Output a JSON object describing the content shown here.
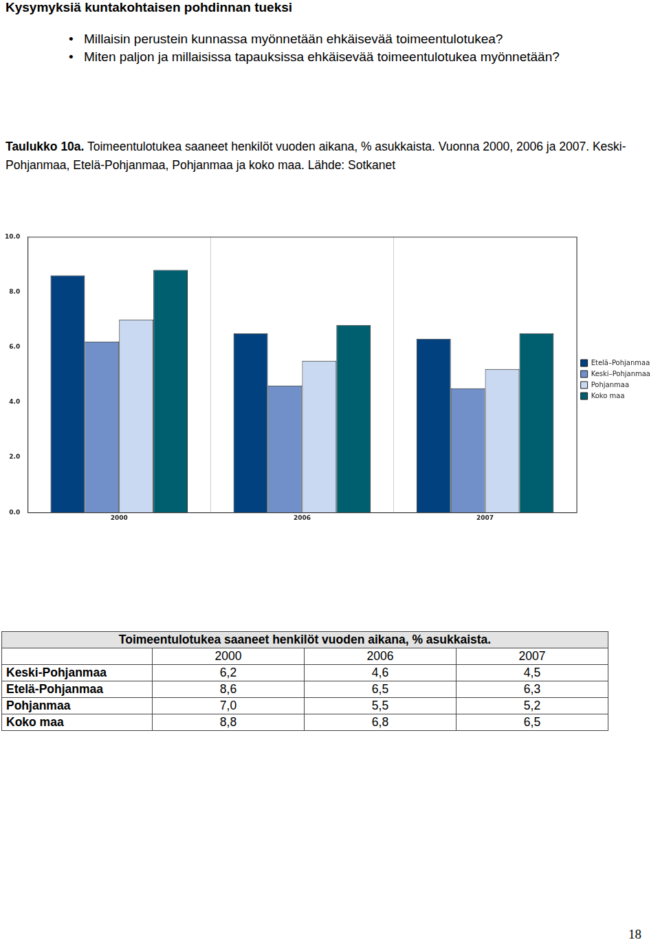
{
  "heading": "Kysymyksiä kuntakohtaisen pohdinnan tueksi",
  "bullets": [
    "Millaisin perustein kunnassa myönnetään ehkäisevää toimeentulotukea?",
    "Miten paljon ja millaisissa tapauksissa ehkäisevää toimeentulotukea myönnetään?"
  ],
  "caption": {
    "label": "Taulukko 10a.",
    "text": "Toimeentulotukea saaneet henkilöt vuoden aikana, % asukkaista. Vuonna 2000, 2006 ja 2007. Keski-Pohjanmaa, Etelä-Pohjanmaa, Pohjanmaa ja koko maa. Lähde: Sotkanet"
  },
  "chart_data": {
    "type": "bar",
    "categories": [
      "2000",
      "2006",
      "2007"
    ],
    "series": [
      {
        "name": "Etelä–Pohjanmaa",
        "color": "#02417f",
        "values": [
          8.6,
          6.5,
          6.3
        ]
      },
      {
        "name": "Keski–Pohjanmaa",
        "color": "#7190c9",
        "values": [
          6.2,
          4.6,
          4.5
        ]
      },
      {
        "name": "Pohjanmaa",
        "color": "#c9d9f1",
        "values": [
          7.0,
          5.5,
          5.2
        ]
      },
      {
        "name": "Koko maa",
        "color": "#005f6f",
        "values": [
          8.8,
          6.8,
          6.5
        ]
      }
    ],
    "ylim": [
      0,
      10
    ],
    "yticks": [
      {
        "value": 0,
        "label": "0.0"
      },
      {
        "value": 2,
        "label": "2.0"
      },
      {
        "value": 4,
        "label": "4.0"
      },
      {
        "value": 6,
        "label": "6.0"
      },
      {
        "value": 8,
        "label": "8.0"
      },
      {
        "value": 10,
        "label": "10.0"
      }
    ],
    "grid": true,
    "legend": "right"
  },
  "table": {
    "title": "Toimeentulotukea saaneet henkilöt vuoden aikana, % asukkaista.",
    "columns": [
      "2000",
      "2006",
      "2007"
    ],
    "rows": [
      {
        "label": "Keski-Pohjanmaa",
        "cells": [
          "6,2",
          "4,6",
          "4,5"
        ]
      },
      {
        "label": "Etelä-Pohjanmaa",
        "cells": [
          "8,6",
          "6,5",
          "6,3"
        ]
      },
      {
        "label": "Pohjanmaa",
        "cells": [
          "7,0",
          "5,5",
          "5,2"
        ]
      },
      {
        "label": "Koko maa",
        "cells": [
          "8,8",
          "6,8",
          "6,5"
        ]
      }
    ]
  },
  "page_number": "18"
}
